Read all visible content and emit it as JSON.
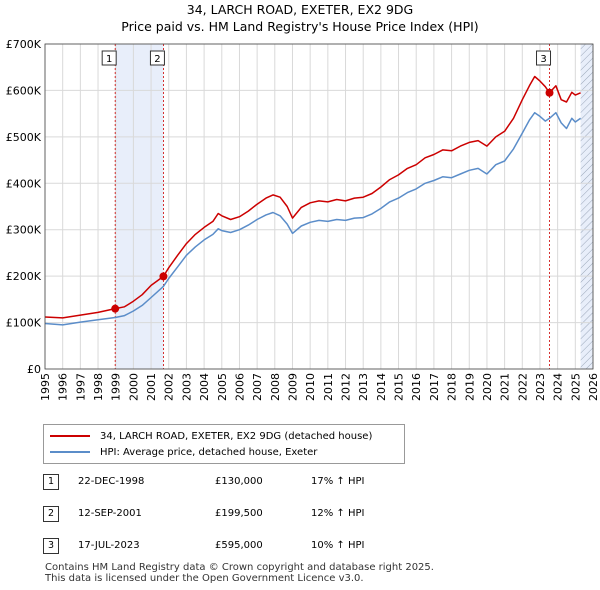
{
  "title": "34, LARCH ROAD, EXETER, EX2 9DG",
  "subtitle": "Price paid vs. HM Land Registry's House Price Index (HPI)",
  "colors": {
    "property": "#cc0000",
    "hpi": "#5b8dc9",
    "shade": "#e8eefa",
    "grid": "#d9d9d9",
    "vline": "#cc0000"
  },
  "chart_data": {
    "type": "line",
    "title": "34, LARCH ROAD, EXETER, EX2 9DG",
    "subtitle": "Price paid vs. HM Land Registry's House Price Index (HPI)",
    "xlim": [
      1995,
      2026
    ],
    "ylim": [
      0,
      700000
    ],
    "x_ticks": [
      1995,
      1996,
      1997,
      1998,
      1999,
      2000,
      2001,
      2002,
      2003,
      2004,
      2005,
      2006,
      2007,
      2008,
      2009,
      2010,
      2011,
      2012,
      2013,
      2014,
      2015,
      2016,
      2017,
      2018,
      2019,
      2020,
      2021,
      2022,
      2023,
      2024,
      2025,
      2026
    ],
    "x_tick_labels": [
      "1995",
      "1996",
      "1997",
      "1998",
      "1999",
      "2000",
      "2001",
      "2002",
      "2003",
      "2004",
      "2005",
      "2006",
      "2007",
      "2008",
      "2009",
      "2010",
      "2011",
      "2012",
      "2013",
      "2014",
      "2015",
      "2016",
      "2017",
      "2018",
      "2019",
      "2020",
      "2021",
      "2022",
      "2023",
      "2024",
      "2025",
      "2026"
    ],
    "y_ticks": [
      0,
      100000,
      200000,
      300000,
      400000,
      500000,
      600000,
      700000
    ],
    "y_tick_labels": [
      "£0",
      "£100K",
      "£200K",
      "£300K",
      "£400K",
      "£500K",
      "£600K",
      "£700K"
    ],
    "series": [
      {
        "name": "34, LARCH ROAD, EXETER, EX2 9DG (detached house)",
        "color": "#cc0000",
        "x": [
          1995.0,
          1996.0,
          1997.0,
          1998.0,
          1998.97,
          1999.5,
          2000.0,
          2000.5,
          2001.0,
          2001.7,
          2002.0,
          2002.5,
          2003.0,
          2003.5,
          2004.0,
          2004.5,
          2004.8,
          2005.0,
          2005.5,
          2006.0,
          2006.5,
          2007.0,
          2007.5,
          2007.9,
          2008.3,
          2008.7,
          2009.0,
          2009.5,
          2010.0,
          2010.5,
          2011.0,
          2011.5,
          2012.0,
          2012.5,
          2013.0,
          2013.5,
          2014.0,
          2014.5,
          2015.0,
          2015.5,
          2016.0,
          2016.5,
          2017.0,
          2017.5,
          2018.0,
          2018.5,
          2019.0,
          2019.5,
          2020.0,
          2020.5,
          2021.0,
          2021.5,
          2022.0,
          2022.4,
          2022.7,
          2023.0,
          2023.3,
          2023.54,
          2023.9,
          2024.2,
          2024.5,
          2024.8,
          2025.0,
          2025.3
        ],
        "y": [
          112000,
          110000,
          116000,
          122000,
          130000,
          134000,
          146000,
          160000,
          180000,
          199500,
          218000,
          245000,
          270000,
          290000,
          305000,
          318000,
          335000,
          330000,
          322000,
          328000,
          340000,
          355000,
          368000,
          375000,
          370000,
          350000,
          325000,
          348000,
          358000,
          362000,
          360000,
          365000,
          362000,
          368000,
          370000,
          378000,
          392000,
          408000,
          418000,
          432000,
          440000,
          455000,
          462000,
          472000,
          470000,
          480000,
          488000,
          492000,
          480000,
          500000,
          512000,
          540000,
          580000,
          610000,
          630000,
          620000,
          608000,
          595000,
          610000,
          580000,
          575000,
          596000,
          590000,
          595000
        ]
      },
      {
        "name": "HPI: Average price, detached house, Exeter",
        "color": "#5b8dc9",
        "x": [
          1995.0,
          1996.0,
          1997.0,
          1998.0,
          1998.97,
          1999.5,
          2000.0,
          2000.5,
          2001.0,
          2001.7,
          2002.0,
          2002.5,
          2003.0,
          2003.5,
          2004.0,
          2004.5,
          2004.8,
          2005.0,
          2005.5,
          2006.0,
          2006.5,
          2007.0,
          2007.5,
          2007.9,
          2008.3,
          2008.7,
          2009.0,
          2009.5,
          2010.0,
          2010.5,
          2011.0,
          2011.5,
          2012.0,
          2012.5,
          2013.0,
          2013.5,
          2014.0,
          2014.5,
          2015.0,
          2015.5,
          2016.0,
          2016.5,
          2017.0,
          2017.5,
          2018.0,
          2018.5,
          2019.0,
          2019.5,
          2020.0,
          2020.5,
          2021.0,
          2021.5,
          2022.0,
          2022.4,
          2022.7,
          2023.0,
          2023.3,
          2023.54,
          2023.9,
          2024.2,
          2024.5,
          2024.8,
          2025.0,
          2025.3
        ],
        "y": [
          98000,
          95000,
          101000,
          106000,
          111000,
          115000,
          125000,
          137000,
          154000,
          178000,
          195000,
          220000,
          245000,
          263000,
          278000,
          290000,
          302000,
          298000,
          294000,
          300000,
          310000,
          322000,
          332000,
          337000,
          330000,
          312000,
          292000,
          308000,
          316000,
          320000,
          318000,
          322000,
          320000,
          325000,
          326000,
          334000,
          346000,
          360000,
          368000,
          380000,
          388000,
          400000,
          406000,
          414000,
          412000,
          420000,
          428000,
          432000,
          420000,
          440000,
          448000,
          474000,
          508000,
          536000,
          552000,
          544000,
          534000,
          540000,
          552000,
          530000,
          518000,
          540000,
          532000,
          540000
        ]
      }
    ],
    "sales": [
      {
        "label": "1",
        "x": 1998.97,
        "y": 130000
      },
      {
        "label": "2",
        "x": 2001.7,
        "y": 199500
      },
      {
        "label": "3",
        "x": 2023.54,
        "y": 595000
      }
    ],
    "shaded_spans": [
      [
        1998.97,
        2001.7
      ],
      [
        2025.3,
        2026
      ]
    ],
    "hatched_spans": [
      [
        2025.3,
        2026
      ]
    ]
  },
  "legend": {
    "property_label": "34, LARCH ROAD, EXETER, EX2 9DG (detached house)",
    "hpi_label": "HPI: Average price, detached house, Exeter"
  },
  "sales_table": [
    {
      "num": "1",
      "date": "22-DEC-1998",
      "price": "£130,000",
      "hpi": "17% ↑ HPI"
    },
    {
      "num": "2",
      "date": "12-SEP-2001",
      "price": "£199,500",
      "hpi": "12% ↑ HPI"
    },
    {
      "num": "3",
      "date": "17-JUL-2023",
      "price": "£595,000",
      "hpi": "10% ↑ HPI"
    }
  ],
  "footer": {
    "line1": "Contains HM Land Registry data © Crown copyright and database right 2025.",
    "line2": "This data is licensed under the Open Government Licence v3.0."
  }
}
